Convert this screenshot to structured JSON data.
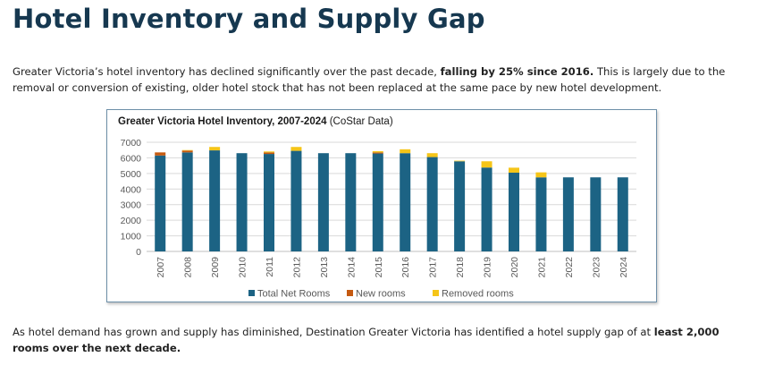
{
  "heading": "Hotel Inventory and Supply Gap",
  "intro": {
    "part1": "Greater Victoria’s hotel inventory has declined significantly over the past decade, ",
    "bold": "falling by 25% since 2016.",
    "part2": " This is largely due to the removal or conversion of existing, older hotel stock that has not been replaced at the same pace by new hotel development."
  },
  "outro": {
    "part1": "As hotel demand has grown and supply has diminished, Destination Greater Victoria has identified a hotel supply gap of at ",
    "bold": "least 2,000 rooms over the next decade."
  },
  "chart_data": {
    "type": "bar",
    "stacked": true,
    "title": "Greater Victoria Hotel Inventory, 2007-2024",
    "title_suffix": " (CoStar Data)",
    "categories": [
      "2007",
      "2008",
      "2009",
      "2010",
      "2011",
      "2012",
      "2013",
      "2014",
      "2015",
      "2016",
      "2017",
      "2018",
      "2019",
      "2020",
      "2021",
      "2022",
      "2023",
      "2024"
    ],
    "series": [
      {
        "name": "Total Net Rooms",
        "color": "#1c6384",
        "values": [
          6150,
          6350,
          6480,
          6300,
          6250,
          6450,
          6300,
          6300,
          6280,
          6300,
          6050,
          5780,
          5380,
          5050,
          4750,
          4750,
          4750,
          4750
        ]
      },
      {
        "name": "New rooms",
        "color": "#c55a11",
        "values": [
          200,
          120,
          0,
          0,
          100,
          0,
          0,
          0,
          70,
          0,
          0,
          0,
          0,
          0,
          0,
          0,
          0,
          0
        ]
      },
      {
        "name": "Removed rooms",
        "color": "#f5c518",
        "values": [
          0,
          30,
          220,
          0,
          60,
          250,
          0,
          0,
          80,
          250,
          250,
          40,
          400,
          320,
          320,
          0,
          0,
          0
        ]
      }
    ],
    "yticks": [
      0,
      1000,
      2000,
      3000,
      4000,
      5000,
      6000,
      7000
    ],
    "ylim": [
      0,
      7000
    ],
    "grid": true,
    "legend_position": "bottom"
  }
}
